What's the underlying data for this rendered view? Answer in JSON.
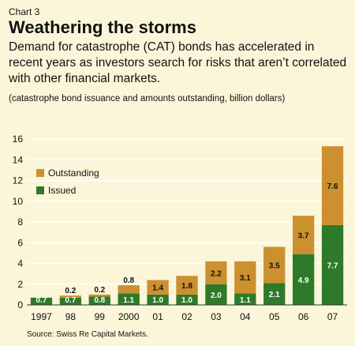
{
  "header": {
    "chart_number": "Chart 3",
    "title": "Weathering the storms",
    "description": "Demand for catastrophe (CAT) bonds has accelerated in recent years as investors search for risks that aren’t correlated with other financial markets.",
    "subtitle": "(catastrophe bond issuance and amounts outstanding, billion dollars)"
  },
  "source": "Source: Swiss Re Capital Markets.",
  "colors": {
    "issued": "#2e7a2a",
    "outstanding": "#cc9030",
    "plot_bg": "#fbf6d9",
    "grid": "#ffffff"
  },
  "chart_data": {
    "type": "bar",
    "stacked": true,
    "categories": [
      "1997",
      "98",
      "99",
      "2000",
      "01",
      "02",
      "03",
      "04",
      "05",
      "06",
      "07"
    ],
    "series": [
      {
        "name": "Issued",
        "values": [
          0.7,
          0.7,
          0.8,
          1.1,
          1.0,
          1.0,
          2.0,
          1.1,
          2.1,
          4.9,
          7.7
        ]
      },
      {
        "name": "Outstanding",
        "values": [
          0,
          0.2,
          0.2,
          0.8,
          1.4,
          1.8,
          2.2,
          3.1,
          3.5,
          3.7,
          7.6
        ]
      }
    ],
    "data_labels": {
      "Issued": [
        "0.7",
        "0.7",
        "0.8",
        "1.1",
        "1.0",
        "1.0",
        "2.0",
        "1.1",
        "2.1",
        "4.9",
        "7.7"
      ],
      "Outstanding": [
        "",
        "0.2",
        "0.2",
        "0.8",
        "1.4",
        "1.8",
        "2.2",
        "3.1",
        "3.5",
        "3.7",
        "7.6"
      ]
    },
    "ylim": [
      0,
      16
    ],
    "yticks": [
      "0",
      "2",
      "4",
      "6",
      "8",
      "10",
      "12",
      "14",
      "16"
    ],
    "grid": true,
    "legend": {
      "position": "top-left",
      "entries": [
        "Outstanding",
        "Issued"
      ]
    }
  }
}
